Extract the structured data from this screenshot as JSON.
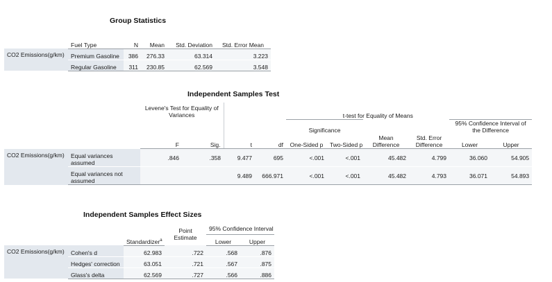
{
  "group_statistics": {
    "title": "Group Statistics",
    "headers": {
      "group": "Fuel Type",
      "n": "N",
      "mean": "Mean",
      "sd": "Std. Deviation",
      "se": "Std. Error Mean"
    },
    "dependent": "CO2 Emissions(g/km)",
    "rows": [
      {
        "group": "Premium Gasoline",
        "n": "386",
        "mean": "276.33",
        "sd": "63.314",
        "se": "3.223"
      },
      {
        "group": "Regular Gasoline",
        "n": "311",
        "mean": "230.85",
        "sd": "62.569",
        "se": "3.548"
      }
    ]
  },
  "independent_test": {
    "title": "Independent Samples Test",
    "levene_header": "Levene's Test for Equality of Variances",
    "ttest_header": "t-test for Equality of Means",
    "significance_header": "Significance",
    "ci_header": "95% Confidence Interval of the Difference",
    "cols": {
      "f": "F",
      "sig": "Sig.",
      "t": "t",
      "df": "df",
      "one": "One-Sided p",
      "two": "Two-Sided p",
      "md": "Mean Difference",
      "sed": "Std. Error Difference",
      "lower": "Lower",
      "upper": "Upper"
    },
    "dependent": "CO2 Emissions(g/km)",
    "rows": [
      {
        "label": "Equal variances assumed",
        "f": ".846",
        "sig": ".358",
        "t": "9.477",
        "df": "695",
        "one": "<.001",
        "two": "<.001",
        "md": "45.482",
        "sed": "4.799",
        "lower": "36.060",
        "upper": "54.905"
      },
      {
        "label": "Equal variances not assumed",
        "f": "",
        "sig": "",
        "t": "9.489",
        "df": "666.971",
        "one": "<.001",
        "two": "<.001",
        "md": "45.482",
        "sed": "4.793",
        "lower": "36.071",
        "upper": "54.893"
      }
    ]
  },
  "effect_sizes": {
    "title": "Independent Samples Effect Sizes",
    "cols": {
      "standardizer": "Standardizer",
      "standardizer_sup": "a",
      "point": "Point Estimate",
      "ci": "95% Confidence Interval",
      "lower": "Lower",
      "upper": "Upper"
    },
    "dependent": "CO2 Emissions(g/km)",
    "rows": [
      {
        "label": "Cohen's d",
        "standardizer": "62.983",
        "point": ".722",
        "lower": ".568",
        "upper": ".876"
      },
      {
        "label": "Hedges' correction",
        "standardizer": "63.051",
        "point": ".721",
        "lower": ".567",
        "upper": ".875"
      },
      {
        "label": "Glass's delta",
        "standardizer": "62.569",
        "point": ".727",
        "lower": ".566",
        "upper": ".886"
      }
    ]
  }
}
